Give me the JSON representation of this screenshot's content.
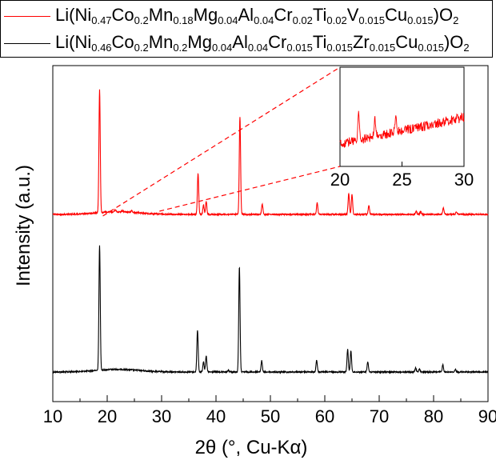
{
  "legend": {
    "entries": [
      {
        "color": "#ff0000",
        "parts": [
          {
            "t": "Li(Ni"
          },
          {
            "t": "0.47",
            "sub": true
          },
          {
            "t": "Co"
          },
          {
            "t": "0.2",
            "sub": true
          },
          {
            "t": "Mn"
          },
          {
            "t": "0.18",
            "sub": true
          },
          {
            "t": "Mg"
          },
          {
            "t": "0.04",
            "sub": true
          },
          {
            "t": "Al"
          },
          {
            "t": "0.04",
            "sub": true
          },
          {
            "t": "Cr"
          },
          {
            "t": "0.02",
            "sub": true
          },
          {
            "t": "Ti"
          },
          {
            "t": "0.02",
            "sub": true
          },
          {
            "t": "V"
          },
          {
            "t": "0.015",
            "sub": true
          },
          {
            "t": "Cu"
          },
          {
            "t": "0.015",
            "sub": true
          },
          {
            "t": ")O"
          },
          {
            "t": "2",
            "sub": true
          }
        ]
      },
      {
        "color": "#000000",
        "parts": [
          {
            "t": "Li(Ni"
          },
          {
            "t": "0.46",
            "sub": true
          },
          {
            "t": "Co"
          },
          {
            "t": "0.2",
            "sub": true
          },
          {
            "t": "Mn"
          },
          {
            "t": "0.2",
            "sub": true
          },
          {
            "t": "Mg"
          },
          {
            "t": "0.04",
            "sub": true
          },
          {
            "t": "Al"
          },
          {
            "t": "0.04",
            "sub": true
          },
          {
            "t": "Cr"
          },
          {
            "t": "0.015",
            "sub": true
          },
          {
            "t": "Ti"
          },
          {
            "t": "0.015",
            "sub": true
          },
          {
            "t": "Zr"
          },
          {
            "t": "0.015",
            "sub": true
          },
          {
            "t": "Cu"
          },
          {
            "t": "0.015",
            "sub": true
          },
          {
            "t": ")O"
          },
          {
            "t": "2",
            "sub": true
          }
        ]
      }
    ]
  },
  "chart_data": {
    "type": "line",
    "title": "",
    "xlabel": "2θ (°, Cu-Kα)",
    "ylabel": "Intensity (a.u.)",
    "xlim": [
      10,
      90
    ],
    "xticks": [
      "10",
      "20",
      "30",
      "40",
      "50",
      "60",
      "70",
      "80",
      "90"
    ],
    "y_tick_labels": false,
    "grid": false,
    "legend_position": "top",
    "series": [
      {
        "name": "Li(Ni0.47Co0.2Mn0.18Mg0.04Al0.04Cr0.02Ti0.02V0.015Cu0.015)O2",
        "color": "#ff0000",
        "baseline": 0.63,
        "peaks": [
          {
            "x": 18.6,
            "h": 0.93
          },
          {
            "x": 21.5,
            "h": 0.015
          },
          {
            "x": 22.8,
            "h": 0.01
          },
          {
            "x": 24.5,
            "h": 0.012
          },
          {
            "x": 36.7,
            "h": 0.31
          },
          {
            "x": 37.7,
            "h": 0.07
          },
          {
            "x": 38.2,
            "h": 0.1
          },
          {
            "x": 44.4,
            "h": 0.74
          },
          {
            "x": 48.5,
            "h": 0.08
          },
          {
            "x": 58.6,
            "h": 0.09
          },
          {
            "x": 64.4,
            "h": 0.16
          },
          {
            "x": 65.0,
            "h": 0.15
          },
          {
            "x": 68.1,
            "h": 0.07
          },
          {
            "x": 76.8,
            "h": 0.025
          },
          {
            "x": 77.6,
            "h": 0.02
          },
          {
            "x": 81.8,
            "h": 0.05
          },
          {
            "x": 84.2,
            "h": 0.02
          }
        ]
      },
      {
        "name": "Li(Ni0.46Co0.2Mn0.2Mg0.04Al0.04Cr0.015Ti0.015Zr0.015Cu0.015)O2",
        "color": "#000000",
        "baseline": 0.0,
        "peaks": [
          {
            "x": 18.6,
            "h": 0.95
          },
          {
            "x": 36.6,
            "h": 0.32
          },
          {
            "x": 37.7,
            "h": 0.08
          },
          {
            "x": 38.2,
            "h": 0.12
          },
          {
            "x": 42.3,
            "h": 0.015
          },
          {
            "x": 44.3,
            "h": 0.8
          },
          {
            "x": 48.4,
            "h": 0.085
          },
          {
            "x": 58.5,
            "h": 0.09
          },
          {
            "x": 64.2,
            "h": 0.17
          },
          {
            "x": 64.8,
            "h": 0.16
          },
          {
            "x": 67.9,
            "h": 0.08
          },
          {
            "x": 76.7,
            "h": 0.03
          },
          {
            "x": 77.4,
            "h": 0.025
          },
          {
            "x": 81.7,
            "h": 0.055
          },
          {
            "x": 84.0,
            "h": 0.02
          }
        ]
      }
    ],
    "inset": {
      "xlim": [
        20,
        30
      ],
      "xticks": [
        "20",
        "25",
        "30"
      ],
      "series": "red",
      "zoom_lines_color": "#ff0000",
      "zoom_lines_style": "dashed"
    }
  }
}
